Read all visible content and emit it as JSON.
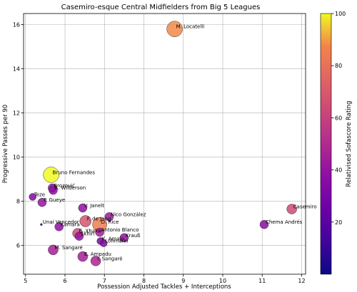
{
  "chart_data": {
    "type": "scatter",
    "title": "Casemiro-esque Central Midfielders from Big 5 Leagues",
    "xlabel": "Possession Adjusted Tackles + Interceptions",
    "ylabel": "Progressive Passes per 90",
    "xlim": [
      4.95,
      12.1
    ],
    "ylim": [
      4.7,
      16.5
    ],
    "xticks": [
      5,
      6,
      7,
      8,
      9,
      10,
      11,
      12
    ],
    "yticks": [
      6,
      8,
      10,
      12,
      14,
      16
    ],
    "grid": true,
    "size_meaning": "marker size",
    "colorbar": {
      "label": "Relativised Sofascore Rating",
      "min": 0,
      "max": 100,
      "ticks": [
        20,
        40,
        60,
        80,
        100
      ],
      "colormap": "plasma"
    },
    "points": [
      {
        "label": "M. Locatelli",
        "x": 8.78,
        "y": 15.8,
        "rating": 88,
        "size": 11
      },
      {
        "label": "Bruno Fernandes",
        "x": 5.65,
        "y": 9.2,
        "rating": 100,
        "size": 11
      },
      {
        "label": "Brozović",
        "x": 5.68,
        "y": 8.6,
        "rating": 35,
        "size": 6
      },
      {
        "label": "A. Wilderson",
        "x": 5.7,
        "y": 8.5,
        "rating": 38,
        "size": 6
      },
      {
        "label": "Teze",
        "x": 5.18,
        "y": 8.2,
        "rating": 33,
        "size": 5
      },
      {
        "label": "P. Gueye",
        "x": 5.42,
        "y": 7.95,
        "rating": 40,
        "size": 6
      },
      {
        "label": "V. Janelt",
        "x": 6.45,
        "y": 7.7,
        "rating": 38,
        "size": 6
      },
      {
        "label": "Nico González",
        "x": 7.12,
        "y": 7.3,
        "rating": 42,
        "size": 6
      },
      {
        "label": "F. de Jong",
        "x": 6.52,
        "y": 7.1,
        "rating": 68,
        "size": 8
      },
      {
        "label": "D. Rice",
        "x": 6.88,
        "y": 6.95,
        "rating": 85,
        "size": 10
      },
      {
        "label": "Unai Vencedor",
        "x": 5.4,
        "y": 6.95,
        "rating": 5,
        "size": 1.5
      },
      {
        "label": "Kamara",
        "x": 5.85,
        "y": 6.85,
        "rating": 38,
        "size": 6
      },
      {
        "label": "Antonio Blanco",
        "x": 6.88,
        "y": 6.6,
        "rating": 45,
        "size": 6
      },
      {
        "label": "E. Xhaka",
        "x": 6.32,
        "y": 6.55,
        "rating": 64,
        "size": 7
      },
      {
        "label": "Skhiri",
        "x": 6.36,
        "y": 6.42,
        "rating": 40,
        "size": 6
      },
      {
        "label": "Krauß",
        "x": 7.5,
        "y": 6.35,
        "rating": 40,
        "size": 6
      },
      {
        "label": "K. Amajo",
        "x": 6.9,
        "y": 6.2,
        "rating": 30,
        "size": 5
      },
      {
        "label": "Lohmann",
        "x": 6.98,
        "y": 6.1,
        "rating": 33,
        "size": 5
      },
      {
        "label": "Casemiro",
        "x": 11.75,
        "y": 7.65,
        "rating": 64,
        "size": 7
      },
      {
        "label": "Chema Andrés",
        "x": 11.05,
        "y": 6.95,
        "rating": 35,
        "size": 6
      },
      {
        "label": "M. Sangaré",
        "x": 5.7,
        "y": 5.8,
        "rating": 45,
        "size": 7
      },
      {
        "label": "E. Ampadu",
        "x": 6.45,
        "y": 5.5,
        "rating": 45,
        "size": 7
      },
      {
        "label": "I. Sangaré",
        "x": 6.78,
        "y": 5.3,
        "rating": 48,
        "size": 7
      }
    ]
  }
}
